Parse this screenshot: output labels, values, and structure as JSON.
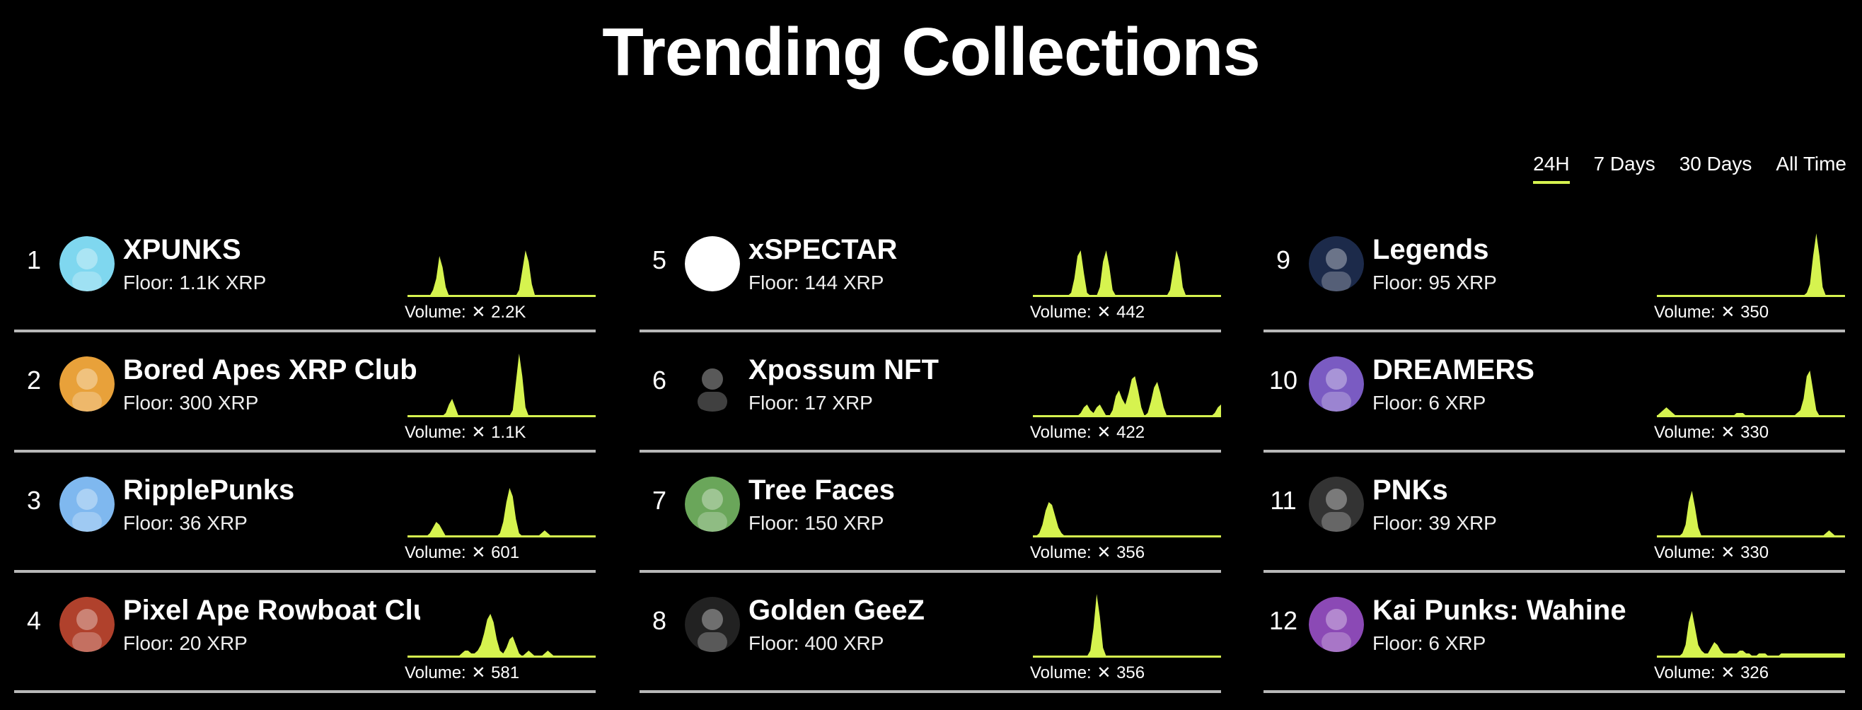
{
  "page": {
    "title": "Trending Collections"
  },
  "tabs": [
    {
      "label": "24H",
      "active": true
    },
    {
      "label": "7 Days",
      "active": false
    },
    {
      "label": "30 Days",
      "active": false
    },
    {
      "label": "All Time",
      "active": false
    }
  ],
  "accent": "#d6f34f",
  "volume_label": "Volume:",
  "currency_icon": "xrp-icon",
  "collections": [
    {
      "rank": "1",
      "name": "XPUNKS",
      "floor": "Floor: 1.1K XRP",
      "volume": "2.2K",
      "avatar_color": "#7fd7ef",
      "spark": [
        0,
        0,
        0,
        0,
        0,
        0,
        0,
        0,
        2,
        6,
        14,
        10,
        3,
        0,
        0,
        0,
        0,
        0,
        0,
        0,
        0,
        0,
        0,
        0,
        0,
        0,
        0,
        0,
        0,
        0,
        0,
        0,
        0,
        0,
        0,
        2,
        9,
        16,
        12,
        4,
        0,
        0,
        0,
        0,
        0,
        0,
        0,
        0,
        0,
        0,
        0,
        0,
        0,
        0,
        0,
        0,
        0,
        0,
        0,
        0
      ]
    },
    {
      "rank": "2",
      "name": "Bored Apes XRP Club",
      "floor": "Floor: 300 XRP",
      "volume": "1.1K",
      "avatar_color": "#e8a13a",
      "spark": [
        0,
        0,
        0,
        0,
        0,
        0,
        0,
        0,
        0,
        0,
        0,
        0,
        1,
        4,
        6,
        3,
        0,
        0,
        0,
        0,
        0,
        0,
        0,
        0,
        0,
        0,
        0,
        0,
        0,
        0,
        0,
        0,
        0,
        2,
        12,
        22,
        14,
        3,
        0,
        0,
        0,
        0,
        0,
        0,
        0,
        0,
        0,
        0,
        0,
        0,
        0,
        0,
        0,
        0,
        0,
        0,
        0,
        0,
        0,
        0
      ]
    },
    {
      "rank": "3",
      "name": "RipplePunks",
      "floor": "Floor: 36 XRP",
      "volume": "601",
      "avatar_color": "#7fb8ef",
      "spark": [
        0,
        0,
        0,
        0,
        0,
        0,
        0,
        1,
        3,
        5,
        4,
        2,
        0,
        0,
        0,
        0,
        0,
        0,
        0,
        0,
        0,
        0,
        0,
        0,
        0,
        0,
        0,
        0,
        0,
        1,
        5,
        12,
        17,
        14,
        6,
        1,
        0,
        0,
        0,
        0,
        0,
        0,
        1,
        2,
        1,
        0,
        0,
        0,
        0,
        0,
        0,
        0,
        0,
        0,
        0,
        0,
        0,
        0,
        0,
        0
      ]
    },
    {
      "rank": "4",
      "name": "Pixel Ape Rowboat Club",
      "floor": "Floor: 20 XRP",
      "volume": "581",
      "avatar_color": "#b0412c",
      "spark": [
        0,
        0,
        0,
        0,
        0,
        0,
        0,
        0,
        0,
        0,
        0,
        0,
        0,
        0,
        0,
        0,
        0,
        1,
        2,
        2,
        1,
        1,
        2,
        4,
        8,
        13,
        15,
        12,
        6,
        2,
        1,
        3,
        6,
        7,
        4,
        1,
        0,
        1,
        2,
        1,
        0,
        0,
        0,
        1,
        2,
        1,
        0,
        0,
        0,
        0,
        0,
        0,
        0,
        0,
        0,
        0,
        0,
        0,
        0,
        0
      ]
    },
    {
      "rank": "5",
      "name": "xSPECTAR",
      "floor": "Floor: 144 XRP",
      "volume": "442",
      "avatar_color": "#ffffff",
      "spark": [
        0,
        0,
        0,
        0,
        0,
        0,
        0,
        0,
        0,
        0,
        0,
        0,
        1,
        6,
        14,
        16,
        8,
        1,
        0,
        0,
        0,
        3,
        12,
        16,
        10,
        2,
        0,
        0,
        0,
        0,
        0,
        0,
        0,
        0,
        0,
        0,
        0,
        0,
        0,
        0,
        0,
        0,
        0,
        2,
        9,
        16,
        12,
        3,
        0,
        0,
        0,
        0,
        0,
        0,
        0,
        0,
        0,
        0,
        0,
        0
      ]
    },
    {
      "rank": "6",
      "name": "Xpossum NFT",
      "floor": "Floor: 17 XRP",
      "volume": "422",
      "avatar_color": "#000000",
      "spark": [
        0,
        0,
        0,
        0,
        0,
        0,
        0,
        0,
        0,
        0,
        0,
        0,
        0,
        0,
        0,
        1,
        3,
        4,
        2,
        1,
        3,
        4,
        2,
        0,
        0,
        2,
        7,
        9,
        6,
        4,
        8,
        13,
        14,
        9,
        3,
        0,
        1,
        5,
        10,
        12,
        8,
        3,
        0,
        0,
        0,
        0,
        0,
        0,
        0,
        0,
        0,
        0,
        0,
        0,
        0,
        0,
        0,
        1,
        3,
        4
      ]
    },
    {
      "rank": "7",
      "name": "Tree Faces",
      "floor": "Floor: 150 XRP",
      "volume": "356",
      "avatar_color": "#6aa65a",
      "spark": [
        0,
        0,
        1,
        4,
        9,
        12,
        11,
        7,
        3,
        1,
        0,
        0,
        0,
        0,
        0,
        0,
        0,
        0,
        0,
        0,
        0,
        0,
        0,
        0,
        0,
        0,
        0,
        0,
        0,
        0,
        0,
        0,
        0,
        0,
        0,
        0,
        0,
        0,
        0,
        0,
        0,
        0,
        0,
        0,
        0,
        0,
        0,
        0,
        0,
        0,
        0,
        0,
        0,
        0,
        0,
        0,
        0,
        0,
        0,
        0
      ]
    },
    {
      "rank": "8",
      "name": "Golden GeeZ",
      "floor": "Floor: 400 XRP",
      "volume": "356",
      "avatar_color": "#222222",
      "spark": [
        0,
        0,
        0,
        0,
        0,
        0,
        0,
        0,
        0,
        0,
        0,
        0,
        0,
        0,
        0,
        0,
        0,
        0,
        2,
        10,
        22,
        14,
        3,
        0,
        0,
        0,
        0,
        0,
        0,
        0,
        0,
        0,
        0,
        0,
        0,
        0,
        0,
        0,
        0,
        0,
        0,
        0,
        0,
        0,
        0,
        0,
        0,
        0,
        0,
        0,
        0,
        0,
        0,
        0,
        0,
        0,
        0,
        0,
        0,
        0
      ]
    },
    {
      "rank": "9",
      "name": "Legends",
      "floor": "Floor: 95 XRP",
      "volume": "350",
      "avatar_color": "#1c2a4a",
      "spark": [
        0,
        0,
        0,
        0,
        0,
        0,
        0,
        0,
        0,
        0,
        0,
        0,
        0,
        0,
        0,
        0,
        0,
        0,
        0,
        0,
        0,
        0,
        0,
        0,
        0,
        0,
        0,
        0,
        0,
        0,
        0,
        0,
        0,
        0,
        0,
        0,
        0,
        0,
        0,
        0,
        0,
        0,
        0,
        0,
        0,
        0,
        0,
        1,
        4,
        14,
        22,
        14,
        3,
        0,
        0,
        0,
        0,
        0,
        0,
        0
      ]
    },
    {
      "rank": "10",
      "name": "DREAMERS",
      "floor": "Floor: 6 XRP",
      "volume": "330",
      "avatar_color": "#7a5bc2",
      "spark": [
        0,
        1,
        2,
        3,
        2,
        1,
        0,
        0,
        0,
        0,
        0,
        0,
        0,
        0,
        0,
        0,
        0,
        0,
        0,
        0,
        0,
        0,
        0,
        0,
        0,
        1,
        1,
        1,
        0,
        0,
        0,
        0,
        0,
        0,
        0,
        0,
        0,
        0,
        0,
        0,
        0,
        0,
        0,
        0,
        1,
        2,
        6,
        14,
        16,
        9,
        2,
        0,
        0,
        0,
        0,
        0,
        0,
        0,
        0,
        0
      ]
    },
    {
      "rank": "11",
      "name": "PNKs",
      "floor": "Floor: 39 XRP",
      "volume": "330",
      "avatar_color": "#333333",
      "spark": [
        0,
        0,
        0,
        0,
        0,
        0,
        0,
        0,
        1,
        4,
        12,
        16,
        10,
        3,
        0,
        0,
        0,
        0,
        0,
        0,
        0,
        0,
        0,
        0,
        0,
        0,
        0,
        0,
        0,
        0,
        0,
        0,
        0,
        0,
        0,
        0,
        0,
        0,
        0,
        0,
        0,
        0,
        0,
        0,
        0,
        0,
        0,
        0,
        0,
        0,
        0,
        0,
        0,
        1,
        2,
        1,
        0,
        0,
        0,
        0
      ]
    },
    {
      "rank": "12",
      "name": "Kai Punks: Wahine",
      "floor": "Floor: 6 XRP",
      "volume": "326",
      "avatar_color": "#8b49b5",
      "spark": [
        0,
        0,
        0,
        0,
        0,
        0,
        0,
        0,
        1,
        4,
        12,
        16,
        10,
        4,
        2,
        1,
        1,
        3,
        5,
        4,
        2,
        1,
        1,
        1,
        1,
        1,
        2,
        2,
        1,
        1,
        0,
        0,
        1,
        1,
        1,
        0,
        0,
        0,
        0,
        1,
        1,
        1,
        1,
        1,
        1,
        1,
        1,
        1,
        1,
        1,
        1,
        1,
        1,
        1,
        1,
        1,
        1,
        1,
        1,
        1
      ]
    }
  ]
}
